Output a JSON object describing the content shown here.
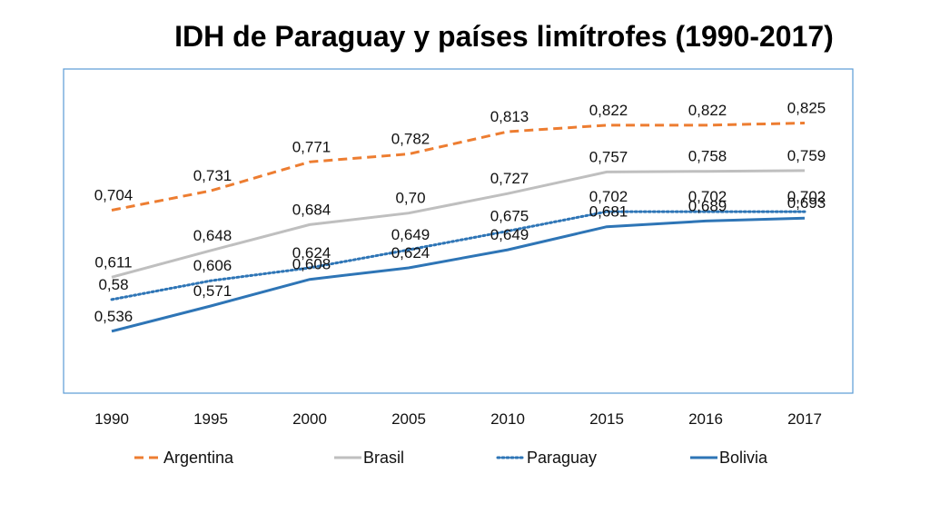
{
  "chart_data": {
    "type": "line",
    "title": "IDH de Paraguay y países limítrofes (1990-2017)",
    "xlabel": "",
    "ylabel": "",
    "ylim": [
      0.45,
      0.9
    ],
    "grid": false,
    "legend_position": "bottom",
    "categories": [
      "1990",
      "1995",
      "2000",
      "2005",
      "2010",
      "2015",
      "2016",
      "2017"
    ],
    "series": [
      {
        "name": "Argentina",
        "color": "#ED7D31",
        "dash": "dashed",
        "values": [
          0.704,
          0.731,
          0.771,
          0.782,
          0.813,
          0.822,
          0.822,
          0.825
        ],
        "labels": [
          "0,704",
          "0,731",
          "0,771",
          "0,782",
          "0,813",
          "0,822",
          "0,822",
          "0,825"
        ]
      },
      {
        "name": "Brasil",
        "color": "#BFBFBF",
        "dash": "solid",
        "values": [
          0.611,
          0.648,
          0.684,
          0.7,
          0.727,
          0.757,
          0.758,
          0.759
        ],
        "labels": [
          "0,611",
          "0,648",
          "0,684",
          "0,70",
          "0,727",
          "0,757",
          "0,758",
          "0,759"
        ]
      },
      {
        "name": "Paraguay",
        "color": "#2E75B6",
        "dash": "dotted",
        "values": [
          0.58,
          0.606,
          0.624,
          0.649,
          0.675,
          0.702,
          0.702,
          0.702
        ],
        "labels": [
          "0,58",
          "0,606",
          "0,624",
          "0,649",
          "0,675",
          "0,702",
          "0,702",
          "0,702"
        ]
      },
      {
        "name": "Bolivia",
        "color": "#2E75B6",
        "dash": "solid",
        "values": [
          0.536,
          0.571,
          0.608,
          0.624,
          0.649,
          0.681,
          0.689,
          0.693
        ],
        "labels": [
          "0,536",
          "0,571",
          "0,608",
          "0,624",
          "0,649",
          "0,681",
          "0,689",
          "0,693"
        ]
      }
    ]
  }
}
